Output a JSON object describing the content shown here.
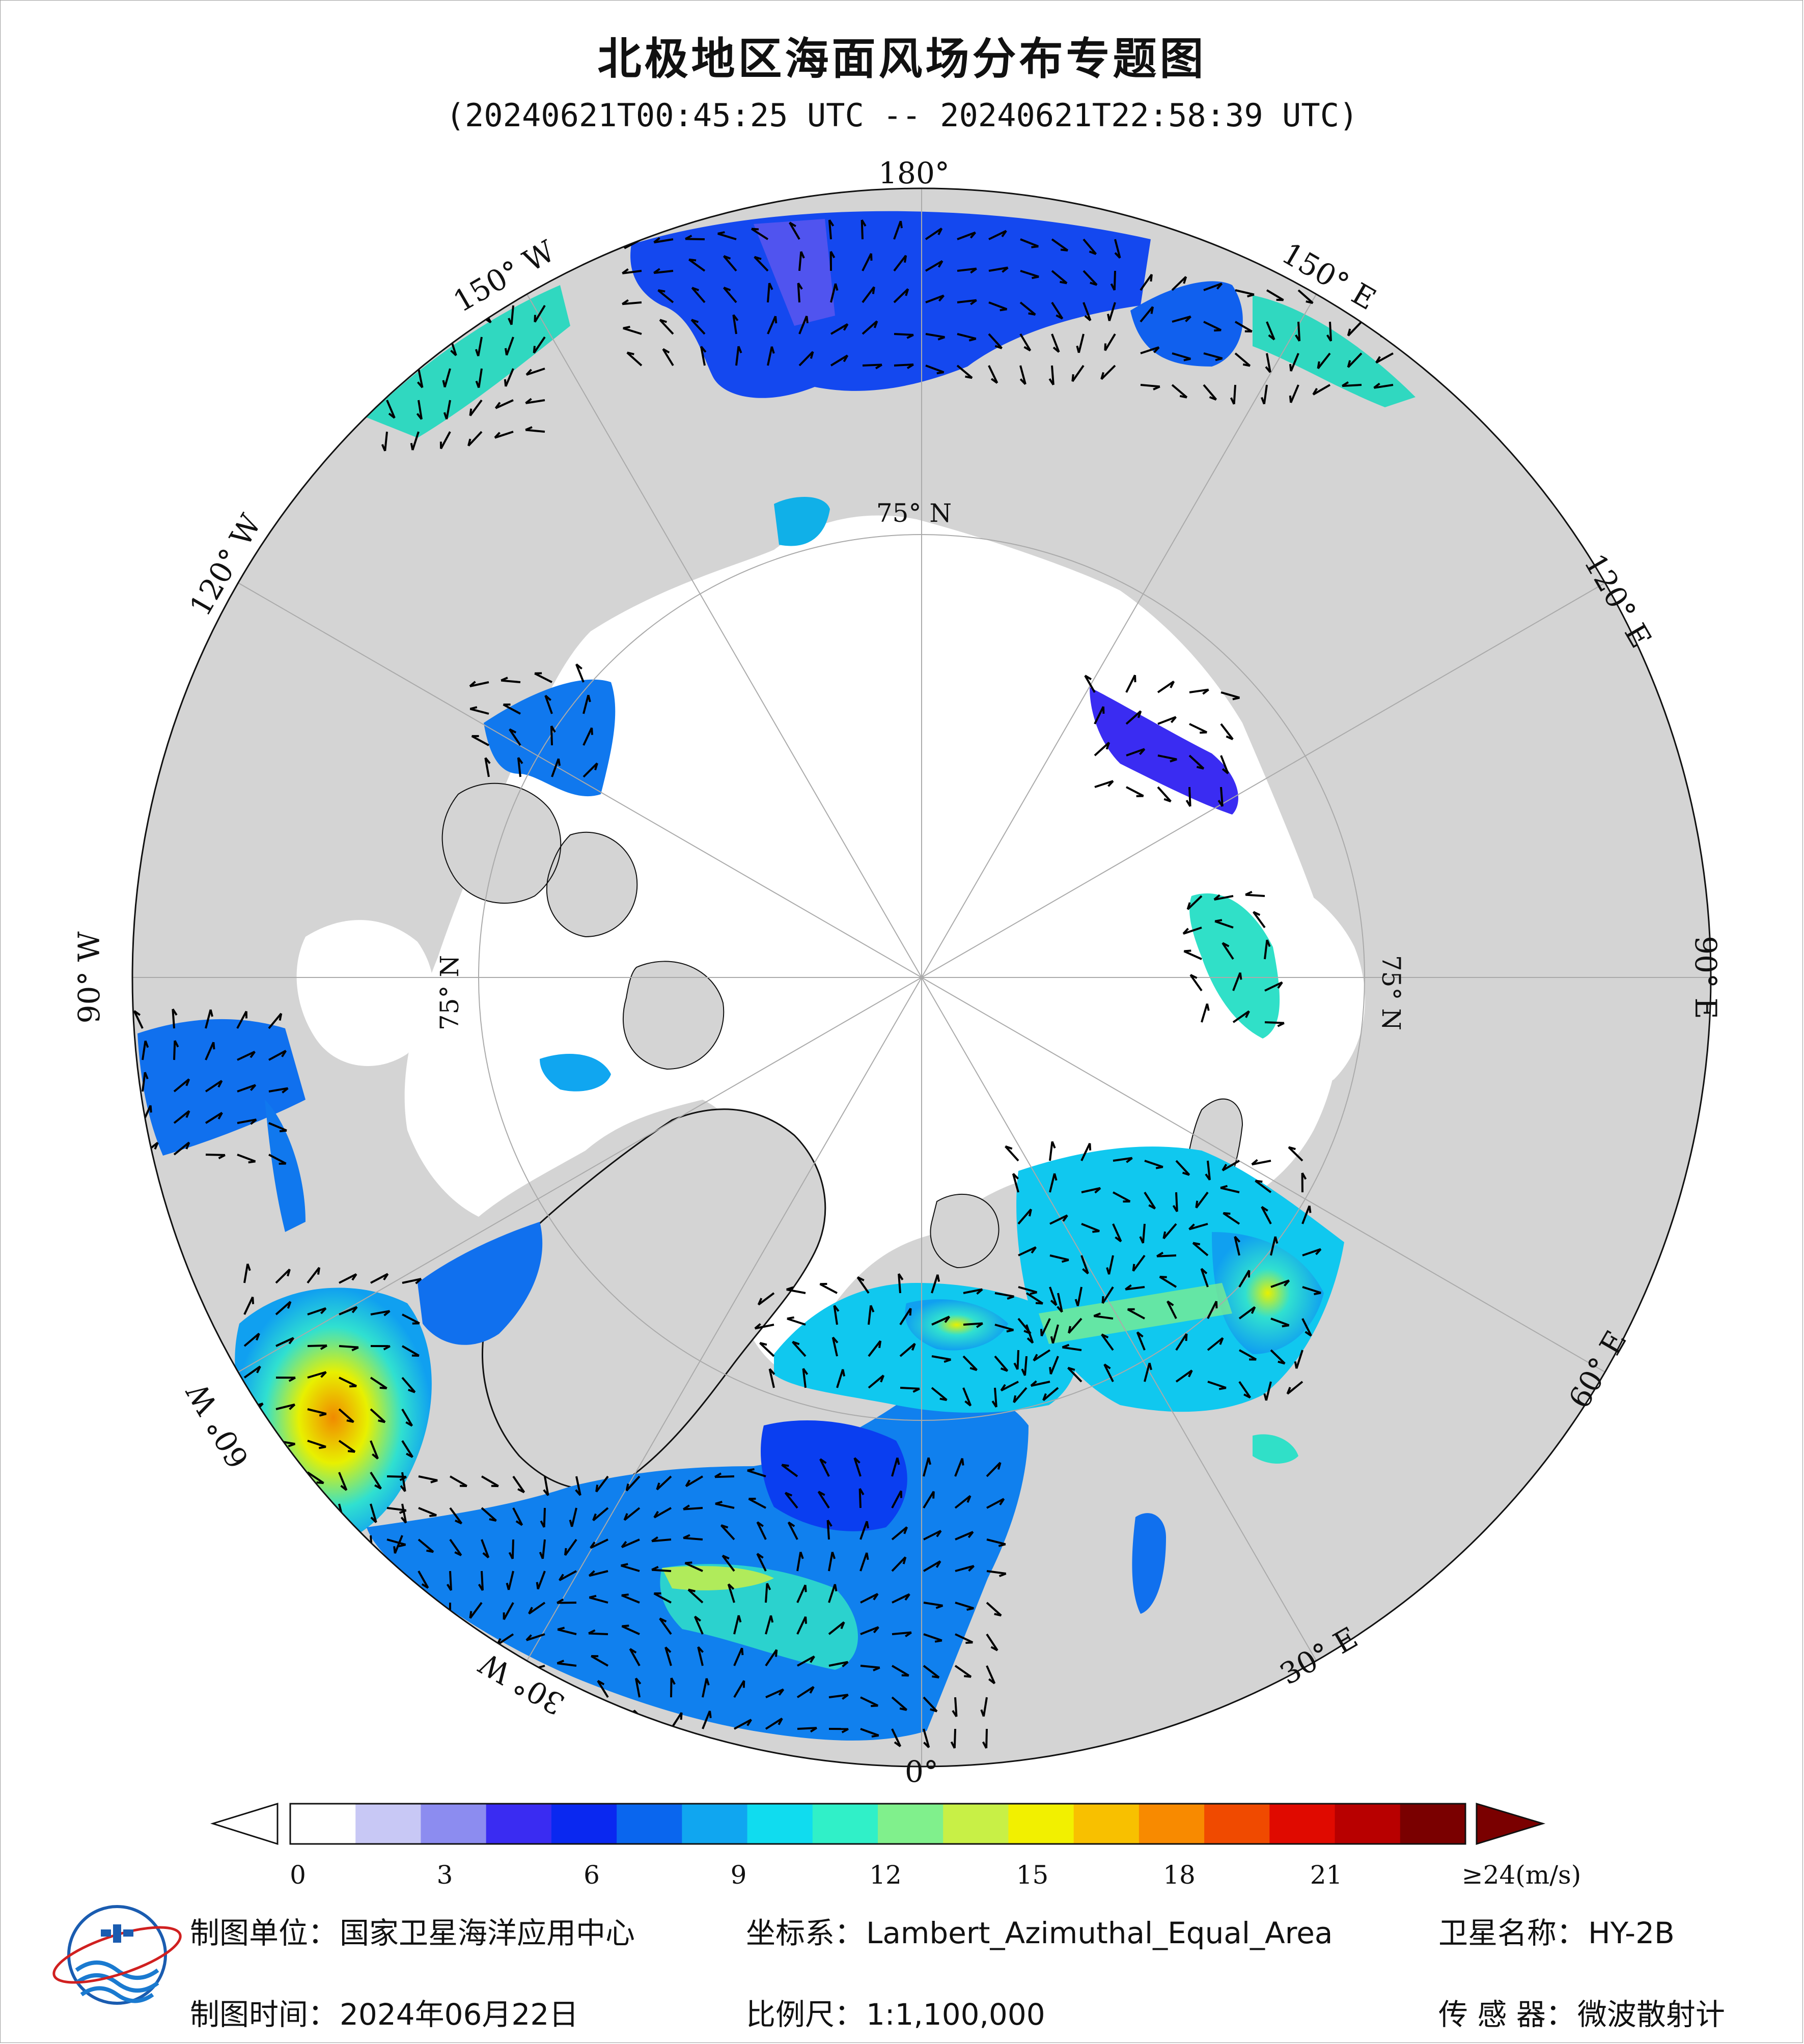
{
  "title": "北极地区海面风场分布专题图",
  "subtitle": "(20240621T00:45:25 UTC -- 20240621T22:58:39 UTC)",
  "map": {
    "projection_note": "Lambert_Azimuthal_Equal_Area",
    "lon_labels": [
      "180°",
      "150° E",
      "120° E",
      "90° E",
      "60° E",
      "30° E",
      "0°",
      "30° W",
      "60° W",
      "90° W",
      "120° W",
      "150° W"
    ],
    "lat_labels": [
      "75° N",
      "75° N",
      "75° N"
    ],
    "colors": {
      "land": "#d4d4d4",
      "ice": "#ffffff",
      "ocean_bg": "#ffffff",
      "arrow": "#000000"
    }
  },
  "colorbar": {
    "ticks": [
      "0",
      "3",
      "6",
      "9",
      "12",
      "15",
      "18",
      "21",
      "≥24(m/s)"
    ],
    "values": [
      0,
      3,
      6,
      9,
      12,
      15,
      18,
      21,
      24
    ],
    "unit": "m/s",
    "range": [
      0,
      24
    ],
    "palette": [
      "#ffffff",
      "#c8c8f5",
      "#8c8cf0",
      "#3a2cf2",
      "#0a28f0",
      "#0a66ee",
      "#10a6f0",
      "#10dcef",
      "#30f0c8",
      "#80f08c",
      "#c8f046",
      "#f2f000",
      "#f8c000",
      "#f88a00",
      "#f04a00",
      "#e00a00",
      "#b80000",
      "#7a0000"
    ]
  },
  "footer": {
    "unit_label": "制图单位：",
    "unit_value": "国家卫星海洋应用中心",
    "time_label": "制图时间：",
    "time_value": "2024年06月22日",
    "crs_label": "坐标系：",
    "crs_value": "Lambert_Azimuthal_Equal_Area",
    "scale_label": "比例尺：",
    "scale_value": "1:1,100,000",
    "satellite_label": "卫星名称：",
    "satellite_value": "HY-2B",
    "sensor_label": "传 感 器：",
    "sensor_value": "微波散射计"
  },
  "logo": {
    "name": "nsoas-logo"
  }
}
